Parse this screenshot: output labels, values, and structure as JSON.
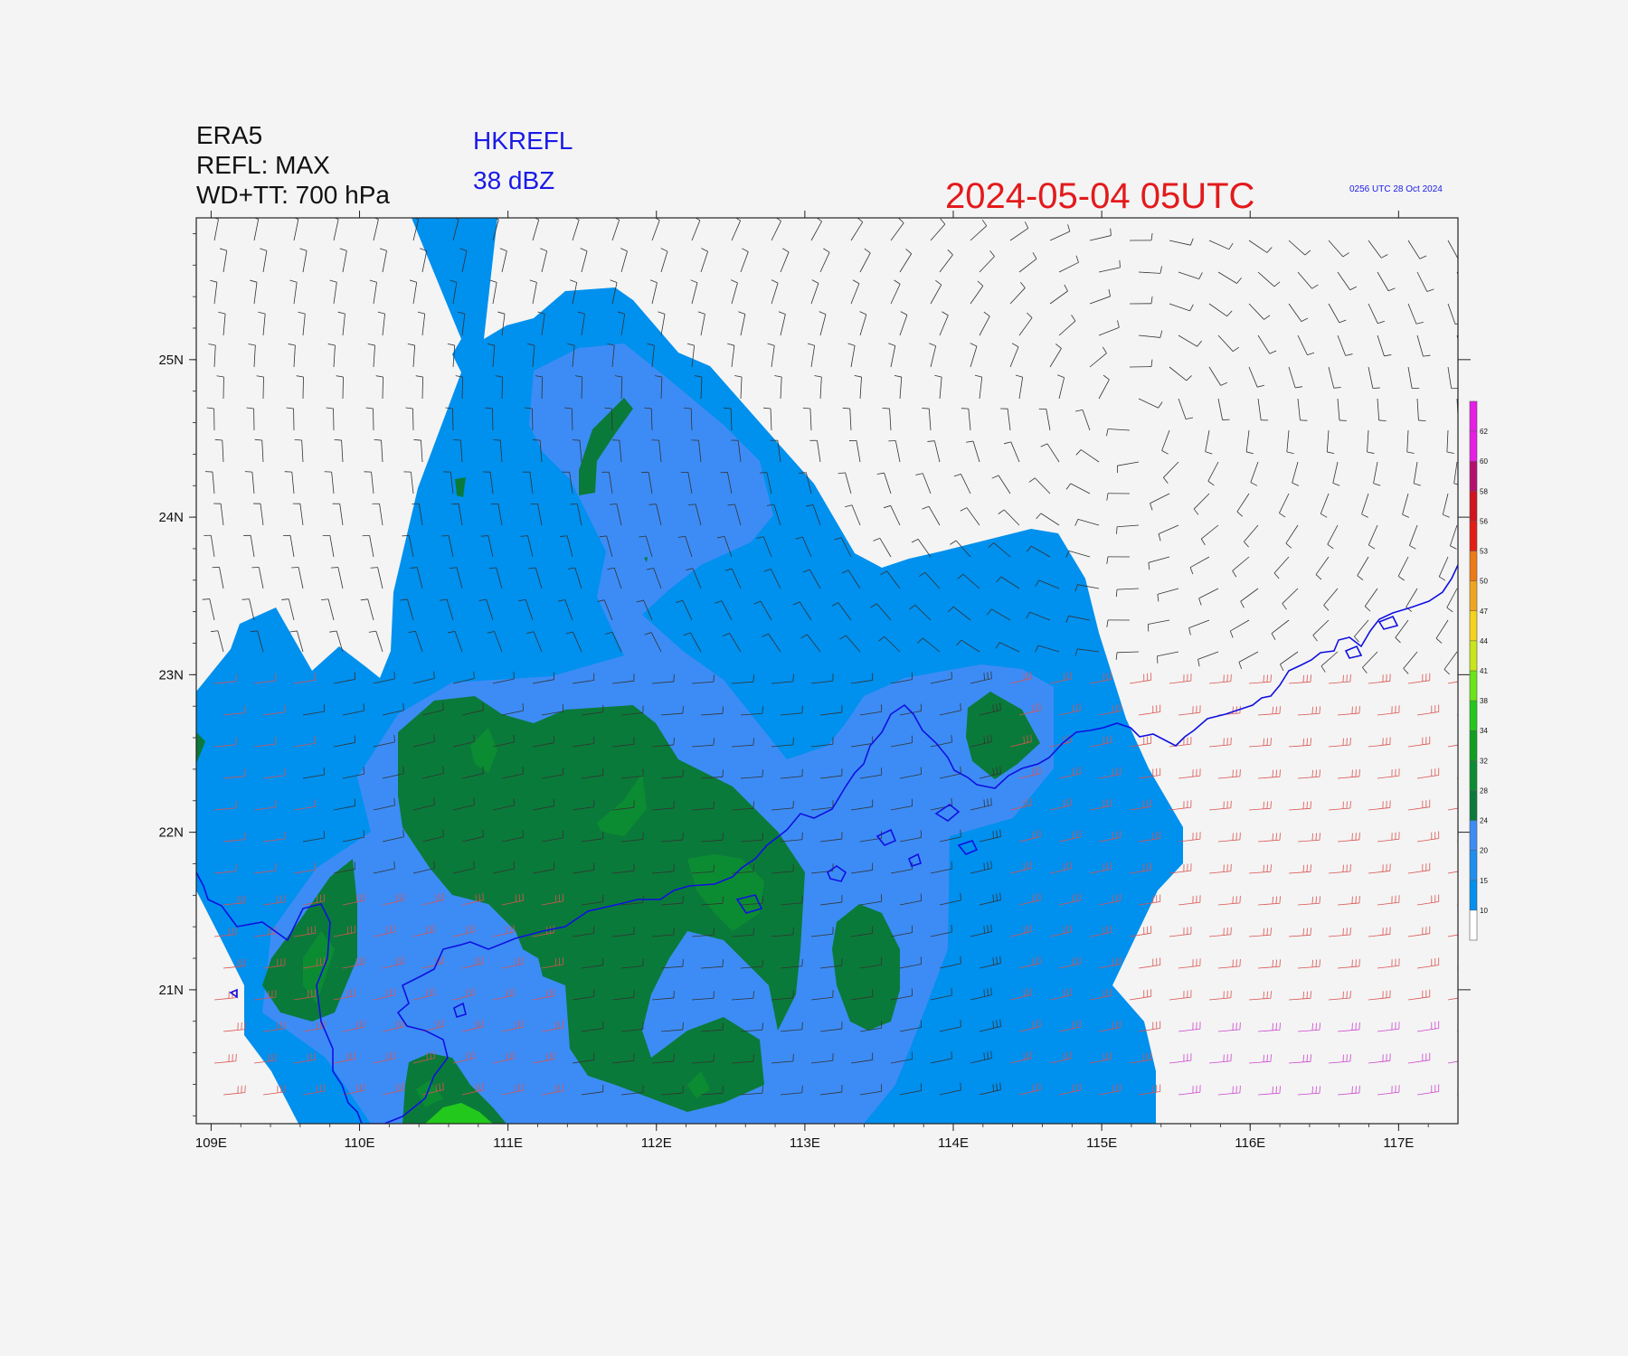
{
  "header": {
    "model": "ERA5",
    "field": "REFL: MAX",
    "wind_level": "WD+TT: 700 hPa",
    "product": "HKREFL",
    "threshold": "38 dBZ",
    "valid_time": "2024-05-04  05UTC",
    "generated": "0256 UTC 28 Oct 2024"
  },
  "map": {
    "lon_range": [
      108.9,
      117.4
    ],
    "lat_range": [
      20.15,
      25.9
    ],
    "lon_ticks": [
      "109E",
      "110E",
      "111E",
      "112E",
      "113E",
      "114E",
      "115E",
      "116E",
      "117E"
    ],
    "lat_ticks": [
      "21N",
      "22N",
      "23N",
      "24N",
      "25N"
    ]
  },
  "colorbar": {
    "levels": [
      "10",
      "15",
      "20",
      "24",
      "28",
      "32",
      "34",
      "38",
      "41",
      "44",
      "47",
      "50",
      "53",
      "56",
      "58",
      "60",
      "62"
    ],
    "colors": [
      "#ffffff",
      "#0090ee",
      "#1e8ff0",
      "#3d8cf5",
      "#0a7a3a",
      "#0c8c32",
      "#10a020",
      "#22c81c",
      "#6be41a",
      "#c8e61a",
      "#f5d21e",
      "#f0a51e",
      "#ee7a16",
      "#e41e14",
      "#d2141e",
      "#b40f6e",
      "#e61ee6",
      "#e61ee6"
    ]
  },
  "colors": {
    "background": "#f4f4f4",
    "refl_10": "#0090ee",
    "refl_20": "#3d8cf5",
    "refl_28": "#0a7a3a",
    "refl_32": "#0c8c32",
    "refl_38": "#22c81c",
    "coastline": "#1010e0",
    "barb_dark": "#333333",
    "barb_warm": "#d9534f",
    "barb_hot": "#cc44cc"
  }
}
